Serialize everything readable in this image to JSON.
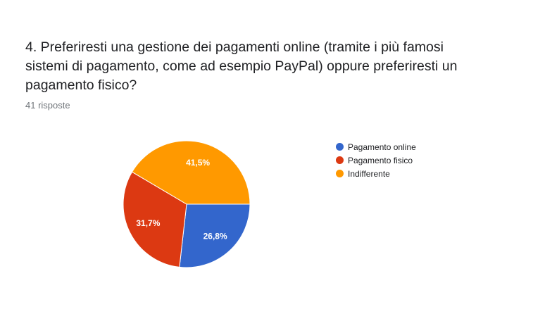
{
  "question": {
    "title": "4. Preferiresti una gestione dei pagamenti online (tramite i più famosi sistemi di pagamento, come ad esempio PayPal) oppure preferiresti un pagamento fisico?",
    "responses": "41 risposte"
  },
  "chart_data": {
    "type": "pie",
    "title": "",
    "legend_position": "right",
    "slices": [
      {
        "name": "Pagamento online",
        "value": 26.8,
        "label": "26,8%",
        "color": "#3366cc"
      },
      {
        "name": "Pagamento fisico",
        "value": 31.7,
        "label": "31,7%",
        "color": "#dc3912"
      },
      {
        "name": "Indifferente",
        "value": 41.5,
        "label": "41,5%",
        "color": "#ff9900"
      }
    ]
  }
}
